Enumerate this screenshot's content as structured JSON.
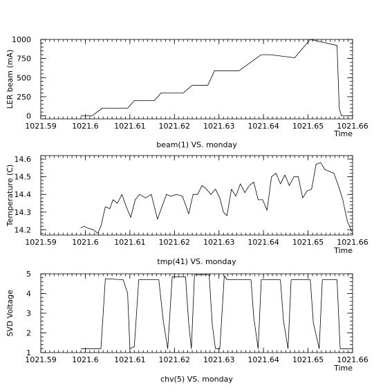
{
  "chart_data": [
    {
      "type": "line",
      "ylabel": "LER beam (mA)",
      "xlabel": "Time",
      "caption": "beam(1) VS. monday",
      "xlim": [
        1021.59,
        1021.66
      ],
      "ylim": [
        -40,
        1000
      ],
      "x_ticks": [
        "1021.59",
        "1021.6",
        "1021.61",
        "1021.62",
        "1021.63",
        "1021.64",
        "1021.65",
        "1021.66"
      ],
      "y_ticks": [
        "0",
        "250",
        "500",
        "750",
        "1000"
      ],
      "series": [
        {
          "x": [
            1021.599,
            1021.6015,
            1021.6038,
            1021.6095,
            1021.611,
            1021.6155,
            1021.617,
            1021.622,
            1021.624,
            1021.6275,
            1021.629,
            1021.6325,
            1021.6345,
            1021.6395,
            1021.6415,
            1021.647,
            1021.6505,
            1021.6565,
            1021.657,
            1021.6575,
            1021.659
          ],
          "y": [
            0,
            0,
            100,
            100,
            200,
            200,
            300,
            300,
            400,
            400,
            590,
            590,
            590,
            800,
            800,
            760,
            1000,
            920,
            100,
            0,
            0
          ]
        }
      ]
    },
    {
      "type": "line",
      "ylabel": "Temperature (C)",
      "xlabel": "Time",
      "caption": "tmp(41) VS. monday",
      "xlim": [
        1021.59,
        1021.66
      ],
      "ylim": [
        14.17,
        14.62
      ],
      "x_ticks": [
        "1021.59",
        "1021.6",
        "1021.61",
        "1021.62",
        "1021.63",
        "1021.64",
        "1021.65",
        "1021.66"
      ],
      "y_ticks": [
        "14.2",
        "14.3",
        "14.4",
        "14.5",
        "14.6"
      ],
      "series": [
        {
          "x": [
            1021.599,
            1021.5997,
            1021.6005,
            1021.6018,
            1021.6028,
            1021.6035,
            1021.6045,
            1021.6055,
            1021.6062,
            1021.6072,
            1021.6082,
            1021.6092,
            1021.6102,
            1021.6112,
            1021.6122,
            1021.6135,
            1021.6148,
            1021.6162,
            1021.6172,
            1021.6182,
            1021.6192,
            1021.6205,
            1021.6218,
            1021.6232,
            1021.6242,
            1021.6252,
            1021.6262,
            1021.6272,
            1021.6282,
            1021.6292,
            1021.6302,
            1021.631,
            1021.6318,
            1021.6328,
            1021.6338,
            1021.6348,
            1021.6358,
            1021.6368,
            1021.6378,
            1021.6388,
            1021.6398,
            1021.6408,
            1021.6418,
            1021.6428,
            1021.6438,
            1021.6448,
            1021.6458,
            1021.6468,
            1021.6478,
            1021.6488,
            1021.6498,
            1021.6508,
            1021.6518,
            1021.6528,
            1021.6538,
            1021.6548,
            1021.6558,
            1021.6568,
            1021.6578,
            1021.6588,
            1021.6598
          ],
          "y": [
            14.21,
            14.22,
            14.21,
            14.2,
            14.18,
            14.22,
            14.33,
            14.32,
            14.37,
            14.35,
            14.4,
            14.33,
            14.27,
            14.37,
            14.4,
            14.38,
            14.4,
            14.26,
            14.33,
            14.4,
            14.39,
            14.4,
            14.39,
            14.29,
            14.4,
            14.4,
            14.45,
            14.43,
            14.4,
            14.43,
            14.38,
            14.3,
            14.28,
            14.43,
            14.39,
            14.46,
            14.41,
            14.45,
            14.47,
            14.37,
            14.37,
            14.31,
            14.5,
            14.52,
            14.46,
            14.51,
            14.45,
            14.5,
            14.5,
            14.38,
            14.42,
            14.43,
            14.57,
            14.58,
            14.54,
            14.53,
            14.52,
            14.45,
            14.37,
            14.25,
            14.19
          ]
        }
      ]
    },
    {
      "type": "line",
      "ylabel": "SVD Voltage",
      "xlabel": "Time",
      "caption": "chv(5) VS. monday",
      "xlim": [
        1021.59,
        1021.66
      ],
      "ylim": [
        1,
        5
      ],
      "x_ticks": [
        "1021.59",
        "1021.6",
        "1021.61",
        "1021.62",
        "1021.63",
        "1021.64",
        "1021.65",
        "1021.66"
      ],
      "y_ticks": [
        "1",
        "2",
        "3",
        "4",
        "5"
      ],
      "series": [
        {
          "x": [
            1021.599,
            1021.602,
            1021.6035,
            1021.6045,
            1021.6085,
            1021.6095,
            1021.61,
            1021.6105,
            1021.611,
            1021.612,
            1021.6165,
            1021.6175,
            1021.6185,
            1021.6195,
            1021.6225,
            1021.6232,
            1021.6238,
            1021.6245,
            1021.6278,
            1021.6285,
            1021.6292,
            1021.6302,
            1021.6312,
            1021.6318,
            1021.6328,
            1021.6372,
            1021.6378,
            1021.6388,
            1021.6395,
            1021.6438,
            1021.6445,
            1021.6455,
            1021.6462,
            1021.6505,
            1021.6512,
            1021.6525,
            1021.6532,
            1021.6565,
            1021.6572,
            1021.6595
          ],
          "y": [
            1.2,
            1.2,
            1.2,
            4.75,
            4.7,
            4.0,
            1.2,
            1.25,
            1.3,
            4.7,
            4.7,
            2.6,
            1.2,
            4.85,
            4.85,
            2.5,
            1.2,
            4.95,
            4.95,
            2.4,
            1.2,
            1.2,
            4.9,
            4.7,
            4.7,
            4.7,
            2.8,
            1.2,
            4.7,
            4.7,
            2.6,
            1.2,
            4.7,
            4.7,
            2.5,
            1.2,
            4.7,
            4.7,
            1.2,
            1.2
          ]
        }
      ]
    }
  ]
}
